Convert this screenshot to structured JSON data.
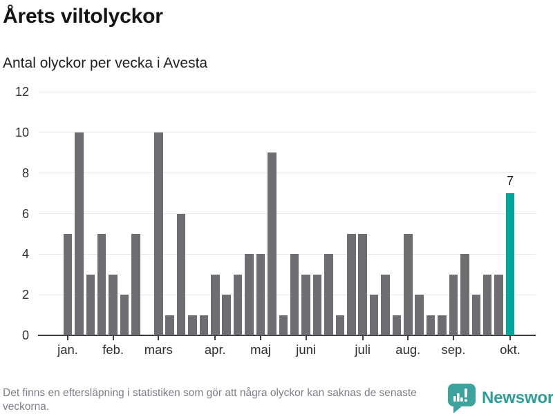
{
  "chart_data": {
    "type": "bar",
    "title": "Årets viltolyckor",
    "subtitle": "Antal olyckor per vecka i Avesta",
    "x_unit": "vecka",
    "values": [
      5,
      10,
      3,
      5,
      3,
      2,
      5,
      0,
      10,
      1,
      6,
      1,
      1,
      3,
      2,
      3,
      4,
      4,
      9,
      1,
      4,
      3,
      3,
      4,
      1,
      5,
      5,
      2,
      3,
      1,
      5,
      2,
      1,
      1,
      3,
      4,
      2,
      3,
      3,
      7
    ],
    "highlight_index": 39,
    "highlight_value_label": "7",
    "x_ticks": [
      {
        "label": "jan.",
        "index": 0
      },
      {
        "label": "feb.",
        "index": 4
      },
      {
        "label": "mars",
        "index": 8
      },
      {
        "label": "apr.",
        "index": 13
      },
      {
        "label": "maj",
        "index": 17
      },
      {
        "label": "juni",
        "index": 21
      },
      {
        "label": "juli",
        "index": 26
      },
      {
        "label": "aug.",
        "index": 30
      },
      {
        "label": "sep.",
        "index": 34
      },
      {
        "label": "okt.",
        "index": 39
      }
    ],
    "y_ticks": [
      0,
      2,
      4,
      6,
      8,
      10,
      12
    ],
    "ylim": [
      0,
      12
    ],
    "grid": true,
    "legend": "none",
    "bar_color": "#6d6d72",
    "highlight_color": "#00a69b"
  },
  "footer": {
    "note": "Det finns en eftersläpning i statistiken som gör att några olyckor kan saknas de senaste veckorna.",
    "brand": "Newsworthy",
    "brand_color": "#2e9e97"
  }
}
